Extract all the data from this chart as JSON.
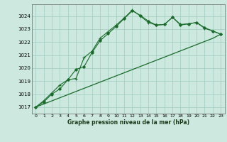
{
  "title": "Graphe pression niveau de la mer (hPa)",
  "background_color": "#cce8df",
  "grid_color": "#a0ccbe",
  "line_color": "#1a6b2a",
  "x_ticks": [
    0,
    1,
    2,
    3,
    4,
    5,
    6,
    7,
    8,
    9,
    10,
    11,
    12,
    13,
    14,
    15,
    16,
    17,
    18,
    19,
    20,
    21,
    22,
    23
  ],
  "ylim": [
    1016.5,
    1024.9
  ],
  "yticks": [
    1017,
    1018,
    1019,
    1020,
    1021,
    1022,
    1023,
    1024
  ],
  "series1": [
    1017.0,
    1017.5,
    1018.1,
    1018.7,
    1019.1,
    1019.2,
    1020.8,
    1021.3,
    1022.3,
    1022.8,
    1023.3,
    1023.85,
    1024.45,
    1024.0,
    1023.5,
    1023.3,
    1023.35,
    1023.9,
    1023.35,
    1023.4,
    1023.5,
    1023.05,
    1022.85,
    1022.6
  ],
  "series2": [
    1017.0,
    1017.4,
    1018.0,
    1018.4,
    1019.1,
    1019.9,
    1020.1,
    1021.2,
    1022.1,
    1022.65,
    1023.2,
    1023.8,
    1024.4,
    1024.05,
    1023.6,
    1023.3,
    1023.35,
    1023.9,
    1023.3,
    1023.4,
    1023.5,
    1023.1,
    1022.85,
    1022.6
  ],
  "series3": [
    1017.0,
    1017.24,
    1017.48,
    1017.72,
    1017.96,
    1018.2,
    1018.44,
    1018.68,
    1018.92,
    1019.16,
    1019.4,
    1019.64,
    1019.88,
    1020.12,
    1020.36,
    1020.6,
    1020.84,
    1021.08,
    1021.32,
    1021.56,
    1021.8,
    1022.04,
    1022.28,
    1022.6
  ]
}
